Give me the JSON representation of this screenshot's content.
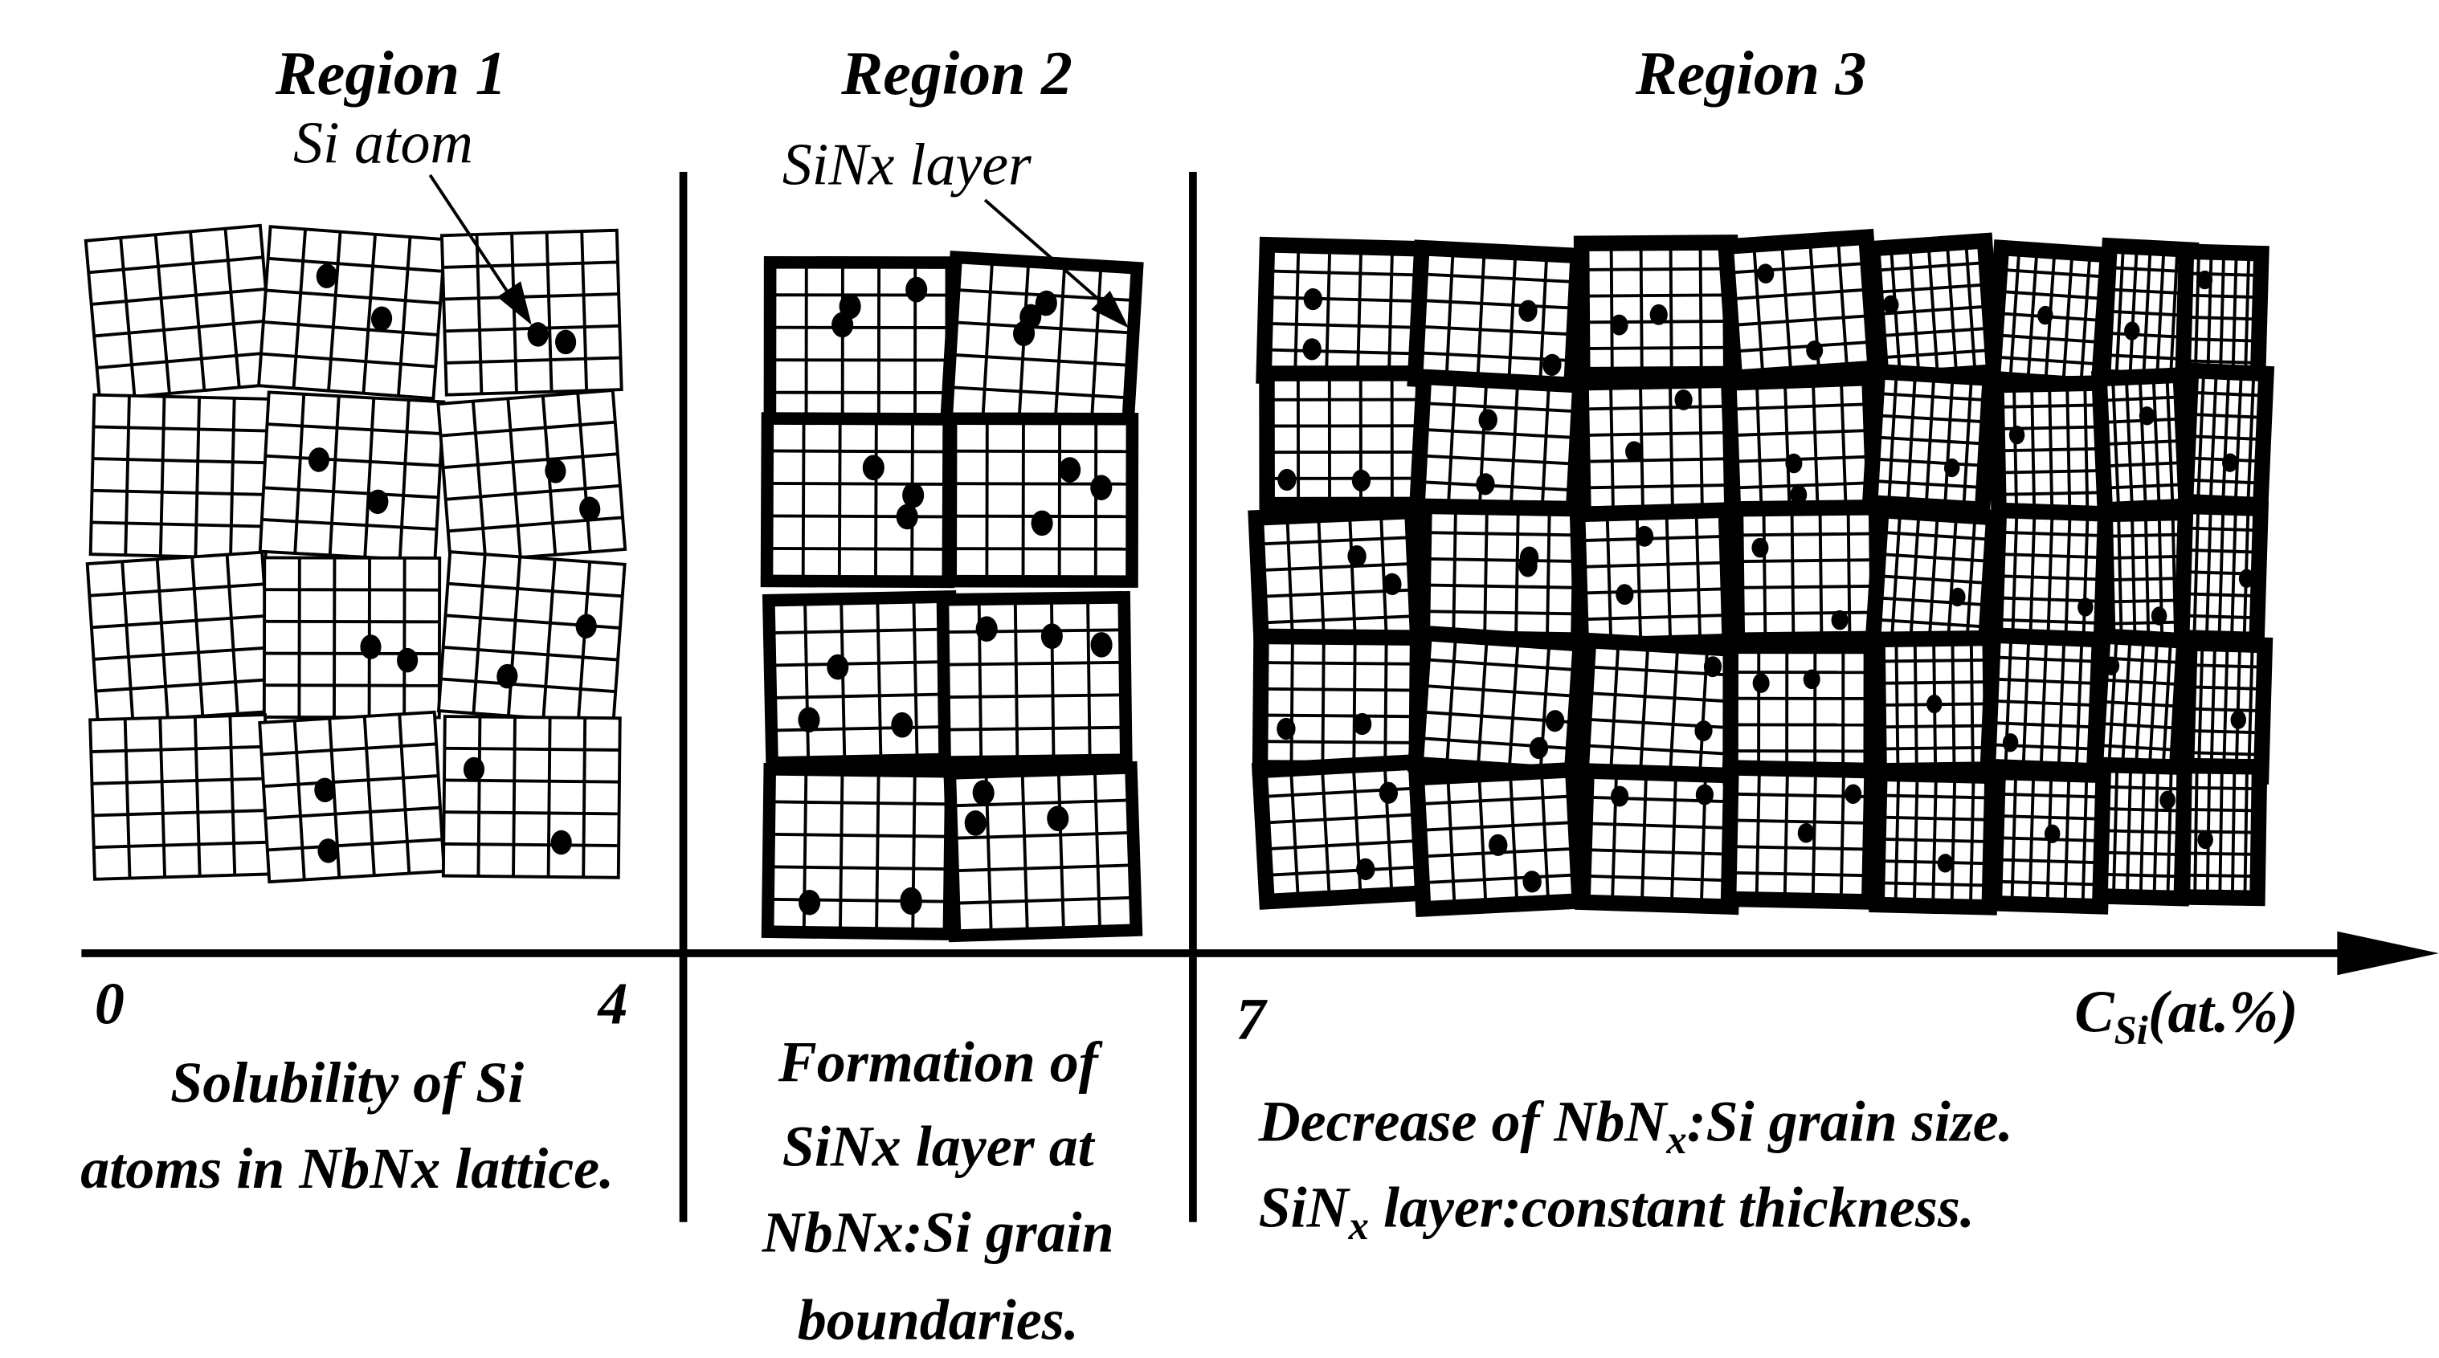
{
  "regions": [
    {
      "title": "Region 1",
      "annotation": "Si atom",
      "description": [
        "Solubility of Si",
        "atoms in NbNx lattice."
      ]
    },
    {
      "title": "Region 2",
      "annotation": "SiNx layer",
      "description": [
        "Formation of",
        "SiNx layer at",
        "NbNx:Si grain",
        "boundaries."
      ]
    },
    {
      "title": "Region 3",
      "description": [
        [
          "Decrease of NbN",
          "x",
          ":Si grain size."
        ],
        [
          "SiN",
          "x",
          " layer:constant thickness."
        ]
      ]
    }
  ],
  "axis": {
    "ticks": [
      0,
      4,
      7
    ],
    "label": [
      "C",
      "Si",
      "(at.%)"
    ]
  }
}
